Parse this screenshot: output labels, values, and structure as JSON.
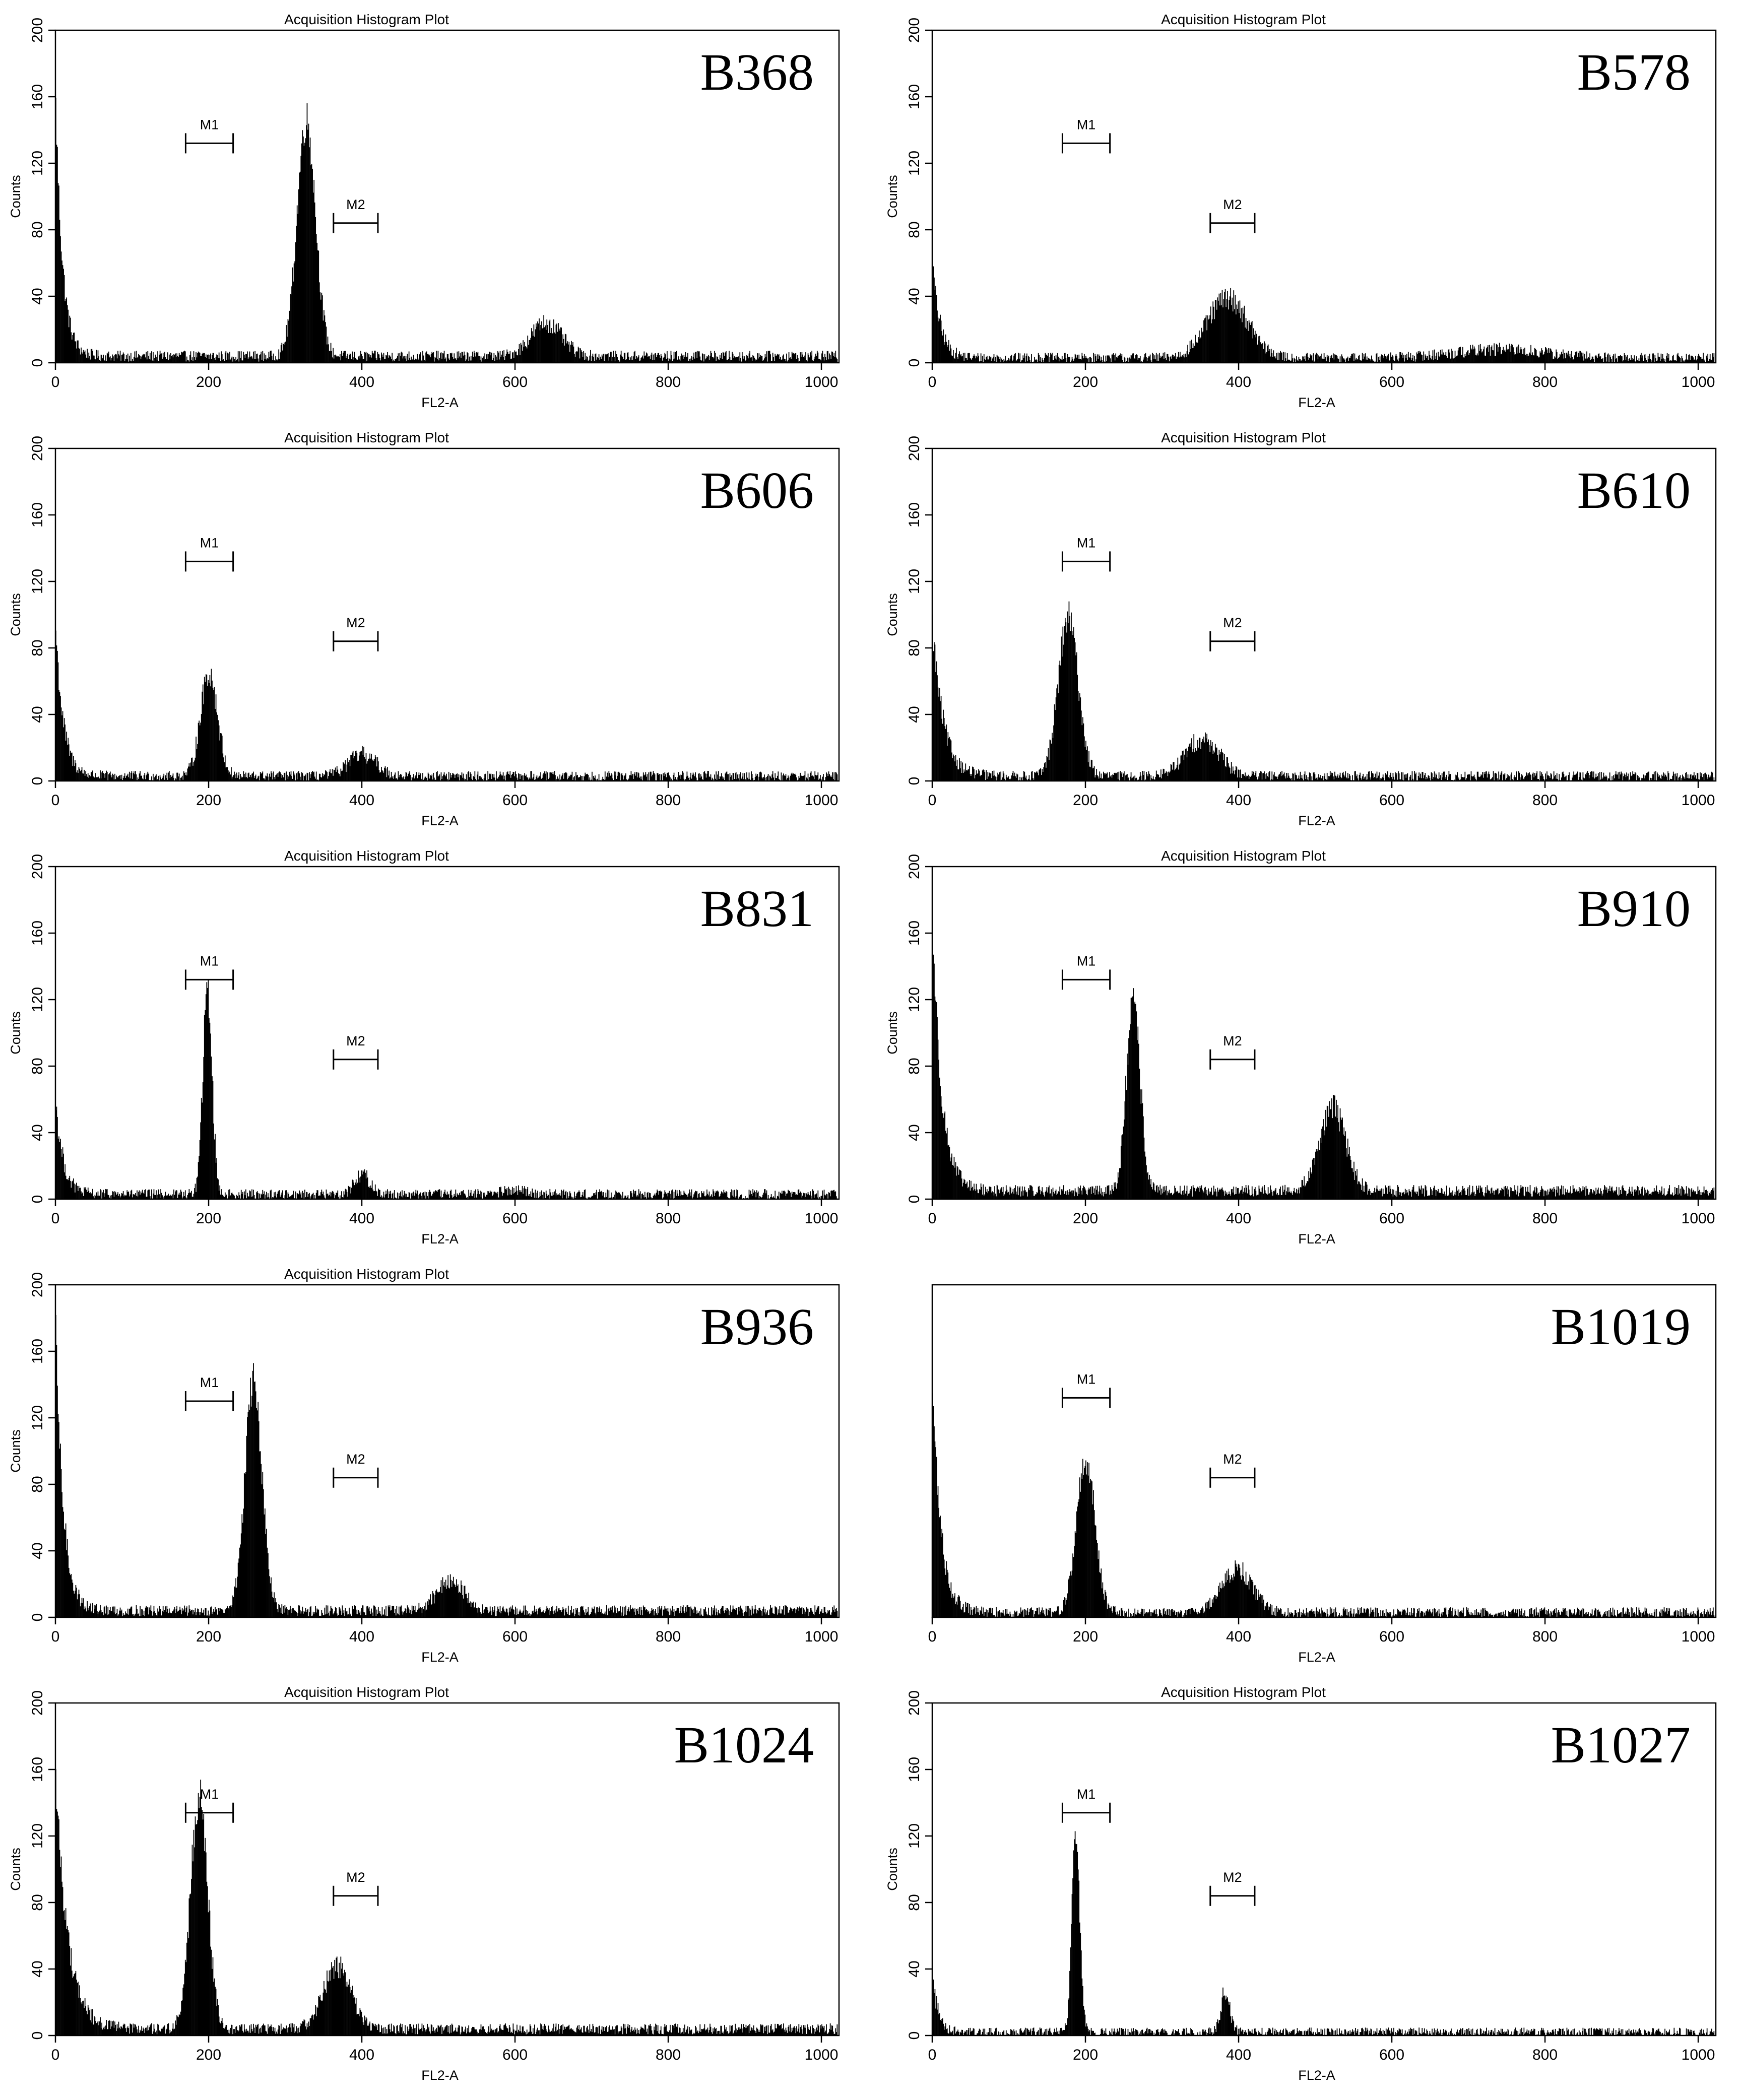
{
  "chart_data": [
    {
      "type": "bar",
      "sample": "B368",
      "title": "Acquisition Histogram Plot",
      "xlabel": "FL2-A",
      "ylabel": "Counts",
      "xlim": [
        0,
        1023
      ],
      "ylim": [
        0,
        200
      ],
      "xticks": [
        "0",
        "200",
        "400",
        "600",
        "800",
        "1000"
      ],
      "yticks": [
        "0",
        "40",
        "80",
        "120",
        "160",
        "200"
      ],
      "markers": [
        {
          "label": "M1",
          "range": [
            170,
            232
          ],
          "level": 132
        },
        {
          "label": "M2",
          "range": [
            363,
            421
          ],
          "level": 84
        }
      ],
      "baseline": 4,
      "debris": {
        "peak": 150,
        "decay": 9
      },
      "peaks": [
        {
          "x": 327,
          "height": 142,
          "width": 12
        },
        {
          "x": 640,
          "height": 20,
          "width": 20
        }
      ]
    },
    {
      "type": "bar",
      "sample": "B578",
      "title": "Acquisition Histogram Plot",
      "xlabel": "FL2-A",
      "ylabel": "Counts",
      "xlim": [
        0,
        1023
      ],
      "ylim": [
        0,
        200
      ],
      "xticks": [
        "0",
        "200",
        "400",
        "600",
        "800",
        "1000"
      ],
      "yticks": [
        "0",
        "40",
        "80",
        "120",
        "160",
        "200"
      ],
      "markers": [
        {
          "label": "M1",
          "range": [
            170,
            232
          ],
          "level": 132
        },
        {
          "label": "M2",
          "range": [
            363,
            421
          ],
          "level": 84
        }
      ],
      "baseline": 3,
      "debris": {
        "peak": 55,
        "decay": 10
      },
      "peaks": [
        {
          "x": 385,
          "height": 36,
          "width": 26
        },
        {
          "x": 740,
          "height": 5,
          "width": 60
        }
      ]
    },
    {
      "type": "bar",
      "sample": "B606",
      "title": "Acquisition Histogram Plot",
      "xlabel": "FL2-A",
      "ylabel": "Counts",
      "xlim": [
        0,
        1023
      ],
      "ylim": [
        0,
        200
      ],
      "xticks": [
        "0",
        "200",
        "400",
        "600",
        "800",
        "1000"
      ],
      "yticks": [
        "0",
        "40",
        "80",
        "120",
        "160",
        "200"
      ],
      "markers": [
        {
          "label": "M1",
          "range": [
            170,
            232
          ],
          "level": 132
        },
        {
          "label": "M2",
          "range": [
            363,
            421
          ],
          "level": 84
        }
      ],
      "baseline": 3,
      "debris": {
        "peak": 88,
        "decay": 10
      },
      "peaks": [
        {
          "x": 200,
          "height": 62,
          "width": 11
        },
        {
          "x": 400,
          "height": 13,
          "width": 18
        }
      ]
    },
    {
      "type": "bar",
      "sample": "B610",
      "title": "Acquisition Histogram Plot",
      "xlabel": "FL2-A",
      "ylabel": "Counts",
      "xlim": [
        0,
        1023
      ],
      "ylim": [
        0,
        200
      ],
      "xticks": [
        "0",
        "200",
        "400",
        "600",
        "800",
        "1000"
      ],
      "yticks": [
        "0",
        "40",
        "80",
        "120",
        "160",
        "200"
      ],
      "markers": [
        {
          "label": "M1",
          "range": [
            170,
            232
          ],
          "level": 132
        },
        {
          "label": "M2",
          "range": [
            363,
            421
          ],
          "level": 84
        }
      ],
      "baseline": 3,
      "debris": {
        "peak": 90,
        "decay": 14
      },
      "peaks": [
        {
          "x": 177,
          "height": 95,
          "width": 13
        },
        {
          "x": 352,
          "height": 22,
          "width": 22
        }
      ]
    },
    {
      "type": "bar",
      "sample": "B831",
      "title": "Acquisition Histogram Plot",
      "xlabel": "FL2-A",
      "ylabel": "Counts",
      "xlim": [
        0,
        1023
      ],
      "ylim": [
        0,
        200
      ],
      "xticks": [
        "0",
        "200",
        "400",
        "600",
        "800",
        "1000"
      ],
      "yticks": [
        "0",
        "40",
        "80",
        "120",
        "160",
        "200"
      ],
      "markers": [
        {
          "label": "M1",
          "range": [
            170,
            232
          ],
          "level": 132
        },
        {
          "label": "M2",
          "range": [
            363,
            421
          ],
          "level": 84
        }
      ],
      "baseline": 3,
      "debris": {
        "peak": 55,
        "decay": 10
      },
      "peaks": [
        {
          "x": 198,
          "height": 122,
          "width": 6
        },
        {
          "x": 400,
          "height": 12,
          "width": 10
        },
        {
          "x": 600,
          "height": 2,
          "width": 20
        }
      ]
    },
    {
      "type": "bar",
      "sample": "B910",
      "title": "Acquisition Histogram Plot",
      "xlabel": "FL2-A",
      "ylabel": "Counts",
      "xlim": [
        0,
        1023
      ],
      "ylim": [
        0,
        200
      ],
      "xticks": [
        "0",
        "200",
        "400",
        "600",
        "800",
        "1000"
      ],
      "yticks": [
        "0",
        "40",
        "80",
        "120",
        "160",
        "200"
      ],
      "markers": [
        {
          "label": "M1",
          "range": [
            170,
            232
          ],
          "level": 132
        },
        {
          "label": "M2",
          "range": [
            363,
            421
          ],
          "level": 84
        }
      ],
      "baseline": 5,
      "debris": {
        "peak": 160,
        "decay": 12
      },
      "peaks": [
        {
          "x": 262,
          "height": 112,
          "width": 9
        },
        {
          "x": 522,
          "height": 50,
          "width": 17
        }
      ]
    },
    {
      "type": "bar",
      "sample": "B936",
      "title": "Acquisition Histogram Plot",
      "xlabel": "FL2-A",
      "ylabel": "Counts",
      "xlim": [
        0,
        1023
      ],
      "ylim": [
        0,
        200
      ],
      "xticks": [
        "0",
        "200",
        "400",
        "600",
        "800",
        "1000"
      ],
      "yticks": [
        "0",
        "40",
        "80",
        "120",
        "160",
        "200"
      ],
      "markers": [
        {
          "label": "M1",
          "range": [
            170,
            232
          ],
          "level": 130
        },
        {
          "label": "M2",
          "range": [
            363,
            421
          ],
          "level": 84
        }
      ],
      "baseline": 4,
      "debris": {
        "peak": 165,
        "decay": 10
      },
      "peaks": [
        {
          "x": 258,
          "height": 138,
          "width": 11
        },
        {
          "x": 515,
          "height": 18,
          "width": 18
        }
      ]
    },
    {
      "type": "bar",
      "sample": "B1019",
      "title": "",
      "xlabel": "FL2-A",
      "ylabel": "",
      "xlim": [
        0,
        1023
      ],
      "ylim": [
        0,
        200
      ],
      "xticks": [
        "0",
        "200",
        "400",
        "600",
        "800",
        "1000"
      ],
      "yticks": [],
      "markers": [
        {
          "label": "M1",
          "range": [
            170,
            232
          ],
          "level": 132
        },
        {
          "label": "M2",
          "range": [
            363,
            421
          ],
          "level": 84
        }
      ],
      "baseline": 3,
      "debris": {
        "peak": 135,
        "decay": 11
      },
      "peaks": [
        {
          "x": 200,
          "height": 92,
          "width": 12
        },
        {
          "x": 397,
          "height": 26,
          "width": 20
        }
      ]
    },
    {
      "type": "bar",
      "sample": "B1024",
      "title": "Acquisition Histogram Plot",
      "xlabel": "FL2-A",
      "ylabel": "Counts",
      "xlim": [
        0,
        1023
      ],
      "ylim": [
        0,
        200
      ],
      "xticks": [
        "0",
        "200",
        "400",
        "600",
        "800",
        "1000"
      ],
      "yticks": [
        "0",
        "40",
        "80",
        "120",
        "160",
        "200"
      ],
      "markers": [
        {
          "label": "M1",
          "range": [
            170,
            232
          ],
          "level": 134
        },
        {
          "label": "M2",
          "range": [
            363,
            421
          ],
          "level": 84
        }
      ],
      "baseline": 4,
      "debris": {
        "peak": 150,
        "decay": 16
      },
      "peaks": [
        {
          "x": 187,
          "height": 140,
          "width": 11
        },
        {
          "x": 367,
          "height": 38,
          "width": 18
        }
      ]
    },
    {
      "type": "bar",
      "sample": "B1027",
      "title": "Acquisition Histogram Plot",
      "xlabel": "FL2-A",
      "ylabel": "Counts",
      "xlim": [
        0,
        1023
      ],
      "ylim": [
        0,
        200
      ],
      "xticks": [
        "0",
        "200",
        "400",
        "600",
        "800",
        "1000"
      ],
      "yticks": [
        "0",
        "40",
        "80",
        "120",
        "160",
        "200"
      ],
      "markers": [
        {
          "label": "M1",
          "range": [
            170,
            232
          ],
          "level": 134
        },
        {
          "label": "M2",
          "range": [
            363,
            421
          ],
          "level": 84
        }
      ],
      "baseline": 2,
      "debris": {
        "peak": 32,
        "decay": 8
      },
      "peaks": [
        {
          "x": 187,
          "height": 122,
          "width": 5
        },
        {
          "x": 382,
          "height": 24,
          "width": 6
        }
      ]
    }
  ]
}
